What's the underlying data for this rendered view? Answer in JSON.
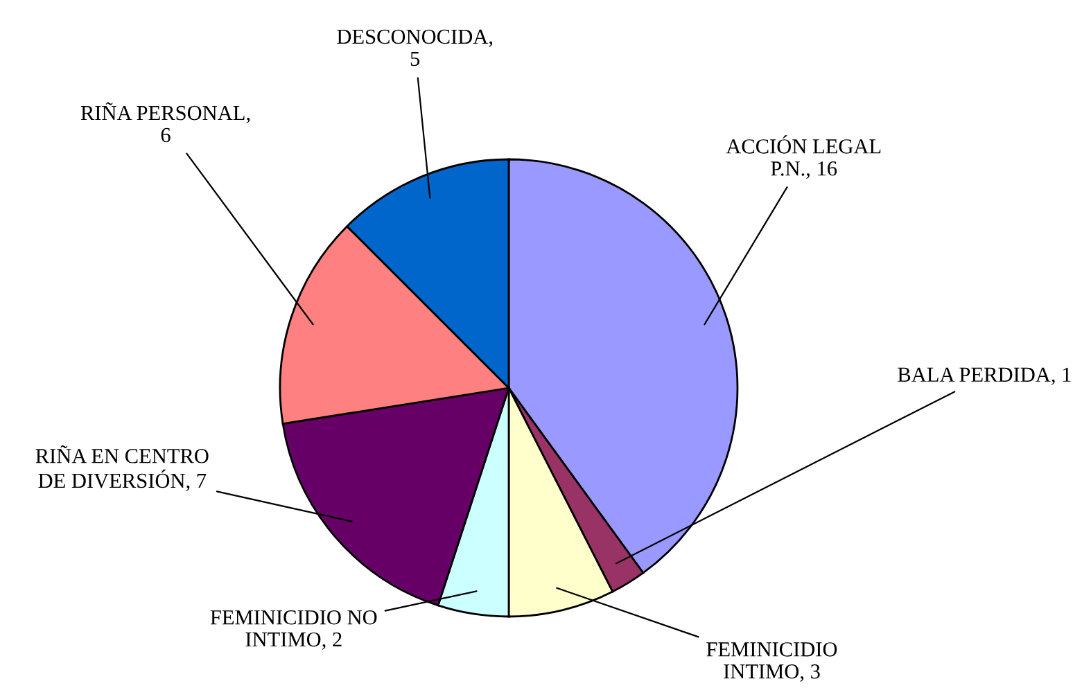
{
  "chart_data": {
    "type": "pie",
    "categories": [
      "ACCIÓN LEGAL P.N.",
      "BALA PERDIDA",
      "FEMINICIDIO INTIMO",
      "FEMINICIDIO NO INTIMO",
      "RIÑA EN CENTRO DE DIVERSIÓN",
      "RIÑA PERSONAL",
      "DESCONOCIDA"
    ],
    "values": [
      16,
      1,
      3,
      2,
      7,
      6,
      5
    ],
    "value_labels": [
      ", 16",
      ", 1",
      ", 3",
      ", 2",
      ", 7",
      ", 6",
      ", 5"
    ],
    "colors": [
      "#9999ff",
      "#993366",
      "#ffffcc",
      "#ccffff",
      "#660066",
      "#ff8080",
      "#0066cc"
    ]
  }
}
